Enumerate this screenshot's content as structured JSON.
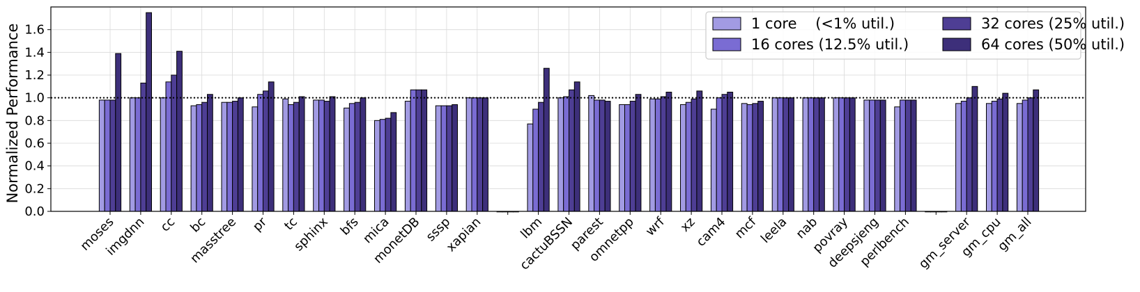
{
  "chart_data": {
    "type": "bar",
    "ylabel": "Normalized Performance",
    "ylim": [
      0,
      1.8
    ],
    "yticks": [
      "0.0",
      "0.2",
      "0.4",
      "0.6",
      "0.8",
      "1.0",
      "1.2",
      "1.4",
      "1.6"
    ],
    "grid": true,
    "reference_line": 1.0,
    "legend_position": "top-right",
    "colors": [
      "#a29be3",
      "#7a6cd3",
      "#4e3e94",
      "#3d2f7a"
    ],
    "categories": [
      "moses",
      "imgdnn",
      "cc",
      "bc",
      "masstree",
      "pr",
      "tc",
      "sphinx",
      "bfs",
      "mica",
      "monetDB",
      "sssp",
      "xapian",
      "",
      "lbm",
      "cactuBSSN",
      "parest",
      "omnetpp",
      "wrf",
      "xz",
      "cam4",
      "mcf",
      "leela",
      "nab",
      "povray",
      "deepsjeng",
      "perlbench",
      "",
      "gm_server",
      "gm_cpu",
      "gm_all"
    ],
    "series": [
      {
        "name": "1 core    (<1% util.)",
        "values": [
          0.98,
          1.0,
          1.0,
          0.93,
          0.96,
          0.92,
          0.99,
          0.98,
          0.91,
          0.8,
          0.97,
          0.93,
          1.0,
          0,
          0.77,
          1.0,
          1.02,
          0.94,
          0.99,
          0.94,
          0.9,
          0.95,
          1.0,
          1.0,
          1.0,
          0.98,
          0.92,
          0,
          0.95,
          0.95,
          0.95
        ]
      },
      {
        "name": "16 cores (12.5% util.)",
        "values": [
          0.98,
          1.0,
          1.14,
          0.94,
          0.96,
          1.03,
          0.94,
          0.98,
          0.95,
          0.81,
          1.07,
          0.93,
          1.0,
          0,
          0.9,
          1.01,
          0.98,
          0.94,
          0.99,
          0.96,
          1.0,
          0.94,
          1.0,
          1.0,
          1.0,
          0.98,
          0.98,
          0,
          0.97,
          0.97,
          0.98
        ]
      },
      {
        "name": "32 cores (25% util.)",
        "values": [
          0.98,
          1.13,
          1.2,
          0.96,
          0.97,
          1.06,
          0.96,
          0.97,
          0.96,
          0.82,
          1.07,
          0.93,
          1.0,
          0,
          0.96,
          1.07,
          0.98,
          0.97,
          1.01,
          0.99,
          1.03,
          0.95,
          1.0,
          1.0,
          1.0,
          0.98,
          0.98,
          0,
          1.0,
          0.99,
          1.0
        ]
      },
      {
        "name": "64 cores (50% util.)",
        "values": [
          1.39,
          1.75,
          1.41,
          1.03,
          1.0,
          1.14,
          1.01,
          1.01,
          1.0,
          0.87,
          1.07,
          0.94,
          1.0,
          0,
          1.26,
          1.14,
          0.97,
          1.03,
          1.05,
          1.06,
          1.05,
          0.97,
          1.0,
          1.0,
          1.0,
          0.98,
          0.98,
          0,
          1.1,
          1.04,
          1.07
        ]
      }
    ]
  }
}
